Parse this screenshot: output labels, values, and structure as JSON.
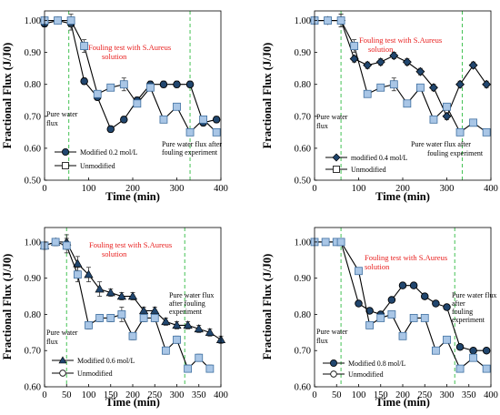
{
  "colors": {
    "modified_fill": "#21466e",
    "modified_edge": "#000000",
    "unmod_square_fill": "#a9c6e6",
    "unmod_square_edge": "#3f6fa0",
    "line": "#000000",
    "vline": "#43c253",
    "red_text": "#e8201f"
  },
  "chart_data": [
    {
      "type": "line",
      "panel": "top-left",
      "xlabel": "Time (min)",
      "ylabel": "Fractional Flux (J/J0)",
      "xlim": [
        0,
        400
      ],
      "ylim": [
        0.5,
        1.03
      ],
      "xticks": [
        "0",
        "100",
        "200",
        "300",
        "400"
      ],
      "yticks": [
        "0.50",
        "0.60",
        "0.70",
        "0.80",
        "0.90",
        "1.00"
      ],
      "legend_position": "bottom-left",
      "vlines": [
        55,
        330
      ],
      "annotations": {
        "fouling": [
          "Fouling test with S.Aureus",
          "solution"
        ],
        "pure": [
          "Pure water",
          "flux"
        ],
        "after": [
          "Pure water flux after",
          "fouling experiment"
        ]
      },
      "series": [
        {
          "name": "Modified 0.2 mol/L",
          "marker": "circle",
          "x": [
            0,
            30,
            60,
            90,
            120,
            150,
            180,
            210,
            240,
            270,
            300,
            330,
            360,
            390
          ],
          "y": [
            0.99,
            1.0,
            0.99,
            0.81,
            0.76,
            0.66,
            0.69,
            0.75,
            0.8,
            0.8,
            0.8,
            0.8,
            0.68,
            0.69
          ],
          "err": [
            0.01,
            0.01,
            0.02,
            0.01,
            0.01,
            0.01,
            0.01,
            0.01,
            0.01,
            0.01,
            0.01,
            0.01,
            0.01,
            0.01
          ]
        },
        {
          "name": "Unmodified",
          "marker": "square",
          "x": [
            0,
            30,
            60,
            90,
            120,
            150,
            180,
            210,
            240,
            270,
            300,
            330,
            360,
            390
          ],
          "y": [
            1.0,
            1.0,
            1.0,
            0.92,
            0.77,
            0.79,
            0.8,
            0.74,
            0.79,
            0.69,
            0.73,
            0.65,
            0.69,
            0.65
          ],
          "err": [
            0.01,
            0.01,
            0.02,
            0.02,
            0.01,
            0.01,
            0.02,
            0.01,
            0.01,
            0.01,
            0.01,
            0.01,
            0.01,
            0.01
          ]
        }
      ]
    },
    {
      "type": "line",
      "panel": "top-right",
      "xlabel": "Time (min)",
      "ylabel": "Fractional Flux (J/J0)",
      "xlim": [
        0,
        400
      ],
      "ylim": [
        0.5,
        1.03
      ],
      "xticks": [
        "0",
        "100",
        "200",
        "300",
        "400"
      ],
      "yticks": [
        "0.50",
        "0.60",
        "0.70",
        "0.80",
        "0.90",
        "1.00"
      ],
      "legend_position": "bottom-left",
      "vlines": [
        60,
        335
      ],
      "annotations": {
        "fouling": [
          "Fouling test with S.Aureus",
          "solution"
        ],
        "pure": [
          "Pure water",
          "flux"
        ],
        "after": [
          "Pure water flux after",
          "fouling experiment"
        ]
      },
      "series": [
        {
          "name": "modified 0.4 mol/L",
          "marker": "diamond",
          "x": [
            0,
            30,
            60,
            90,
            120,
            150,
            180,
            210,
            240,
            270,
            300,
            330,
            360,
            390
          ],
          "y": [
            1.0,
            1.0,
            1.0,
            0.88,
            0.86,
            0.87,
            0.89,
            0.87,
            0.84,
            0.79,
            0.7,
            0.8,
            0.86,
            0.8
          ],
          "err": [
            0.01,
            0.01,
            0.02,
            0.01,
            0.01,
            0.01,
            0.01,
            0.01,
            0.01,
            0.01,
            0.01,
            0.01,
            0.01,
            0.01
          ]
        },
        {
          "name": "Unmodified",
          "marker": "square",
          "x": [
            0,
            30,
            60,
            90,
            120,
            150,
            180,
            210,
            240,
            270,
            300,
            330,
            360,
            390
          ],
          "y": [
            1.0,
            1.0,
            1.0,
            0.92,
            0.77,
            0.79,
            0.8,
            0.74,
            0.79,
            0.69,
            0.73,
            0.65,
            0.68,
            0.65
          ],
          "err": [
            0.01,
            0.01,
            0.02,
            0.02,
            0.01,
            0.01,
            0.02,
            0.01,
            0.01,
            0.01,
            0.01,
            0.01,
            0.01,
            0.01
          ]
        }
      ]
    },
    {
      "type": "line",
      "panel": "bottom-left",
      "xlabel": "Time (min)",
      "ylabel": "Fractional Flux (J/J0)",
      "xlim": [
        0,
        400
      ],
      "ylim": [
        0.6,
        1.04
      ],
      "xticks": [
        "0",
        "50",
        "100",
        "150",
        "200",
        "250",
        "300",
        "350",
        "400"
      ],
      "yticks": [
        "0.60",
        "0.70",
        "0.80",
        "0.90",
        "1.00"
      ],
      "legend_position": "bottom-left",
      "vlines": [
        50,
        318
      ],
      "annotations": {
        "fouling": [
          "Fouling test with S.Aureus",
          "solution"
        ],
        "pure": [
          "Pure water",
          "flux"
        ],
        "after": [
          "Pure water flux",
          "after fouling",
          "experiment"
        ]
      },
      "series": [
        {
          "name": "Modified 0.6 mol/L",
          "marker": "triangle",
          "x": [
            0,
            25,
            50,
            75,
            100,
            125,
            150,
            175,
            200,
            225,
            250,
            275,
            300,
            325,
            350,
            375,
            400
          ],
          "y": [
            0.99,
            1.0,
            1.0,
            0.94,
            0.91,
            0.87,
            0.86,
            0.85,
            0.85,
            0.81,
            0.81,
            0.78,
            0.77,
            0.77,
            0.76,
            0.75,
            0.73
          ],
          "err": [
            0.01,
            0.01,
            0.02,
            0.02,
            0.02,
            0.02,
            0.01,
            0.01,
            0.01,
            0.01,
            0.01,
            0.01,
            0.01,
            0.01,
            0.01,
            0.01,
            0.01
          ]
        },
        {
          "name": "Unmodified",
          "marker": "square",
          "x": [
            0,
            25,
            50,
            75,
            100,
            125,
            150,
            175,
            200,
            225,
            250,
            275,
            300,
            325,
            350,
            375
          ],
          "y": [
            0.99,
            1.0,
            0.99,
            0.91,
            0.77,
            0.79,
            0.79,
            0.8,
            0.74,
            0.79,
            0.79,
            0.7,
            0.73,
            0.65,
            0.68,
            0.65
          ],
          "err": [
            0.01,
            0.01,
            0.02,
            0.02,
            0.01,
            0.01,
            0.01,
            0.02,
            0.01,
            0.01,
            0.01,
            0.01,
            0.01,
            0.01,
            0.01,
            0.01
          ]
        }
      ]
    },
    {
      "type": "line",
      "panel": "bottom-right",
      "xlabel": "Time (min)",
      "ylabel": "Fractional Flux (J/J0)",
      "xlim": [
        0,
        400
      ],
      "ylim": [
        0.6,
        1.04
      ],
      "xticks": [
        "0",
        "50",
        "100",
        "150",
        "200",
        "250",
        "300",
        "350",
        "400"
      ],
      "yticks": [
        "0.60",
        "0.70",
        "0.80",
        "0.90",
        "1.00"
      ],
      "legend_position": "bottom-left",
      "vlines": [
        60,
        318
      ],
      "annotations": {
        "fouling": [
          "Fouling test with S.Aureus",
          "solution"
        ],
        "pure": [
          "Pure water",
          "flux"
        ],
        "after": [
          "Pure water flux",
          "after",
          "fouling",
          "experiment"
        ]
      },
      "series": [
        {
          "name": "Modified 0.8 mol/L",
          "marker": "circle",
          "x": [
            0,
            25,
            50,
            60,
            100,
            125,
            150,
            175,
            200,
            225,
            250,
            275,
            300,
            330,
            360,
            390
          ],
          "y": [
            1.0,
            1.0,
            1.0,
            1.0,
            0.83,
            0.81,
            0.8,
            0.84,
            0.88,
            0.88,
            0.85,
            0.83,
            0.82,
            0.71,
            0.7,
            0.7
          ],
          "err": [
            0.005,
            0.005,
            0.005,
            0.005,
            0.005,
            0.005,
            0.005,
            0.005,
            0.005,
            0.005,
            0.005,
            0.005,
            0.005,
            0.005,
            0.005,
            0.005
          ]
        },
        {
          "name": "Unmodified",
          "marker": "square",
          "x": [
            0,
            25,
            50,
            60,
            100,
            125,
            150,
            175,
            200,
            225,
            250,
            275,
            300,
            330,
            360,
            390
          ],
          "y": [
            1.0,
            1.0,
            1.0,
            1.0,
            0.92,
            0.77,
            0.79,
            0.8,
            0.74,
            0.79,
            0.79,
            0.7,
            0.73,
            0.65,
            0.68,
            0.65
          ],
          "err": [
            0.005,
            0.005,
            0.005,
            0.005,
            0.005,
            0.005,
            0.005,
            0.005,
            0.005,
            0.005,
            0.005,
            0.005,
            0.005,
            0.005,
            0.005,
            0.005
          ]
        }
      ]
    }
  ]
}
